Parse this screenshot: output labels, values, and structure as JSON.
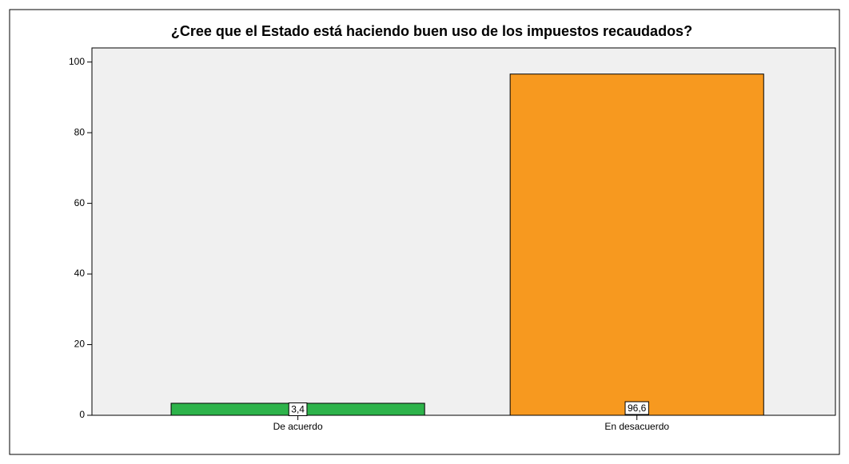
{
  "chart_data": {
    "type": "bar",
    "title": "¿Cree que el Estado está haciendo buen uso de los impuestos recaudados?",
    "categories": [
      "De acuerdo",
      "En desacuerdo"
    ],
    "values": [
      3.4,
      96.6
    ],
    "value_labels": [
      "3,4",
      "96,6"
    ],
    "colors": [
      "#2db34a",
      "#f7991f"
    ],
    "ylim": [
      0,
      104
    ],
    "yticks": [
      0,
      20,
      40,
      60,
      80,
      100
    ],
    "grid": false
  }
}
